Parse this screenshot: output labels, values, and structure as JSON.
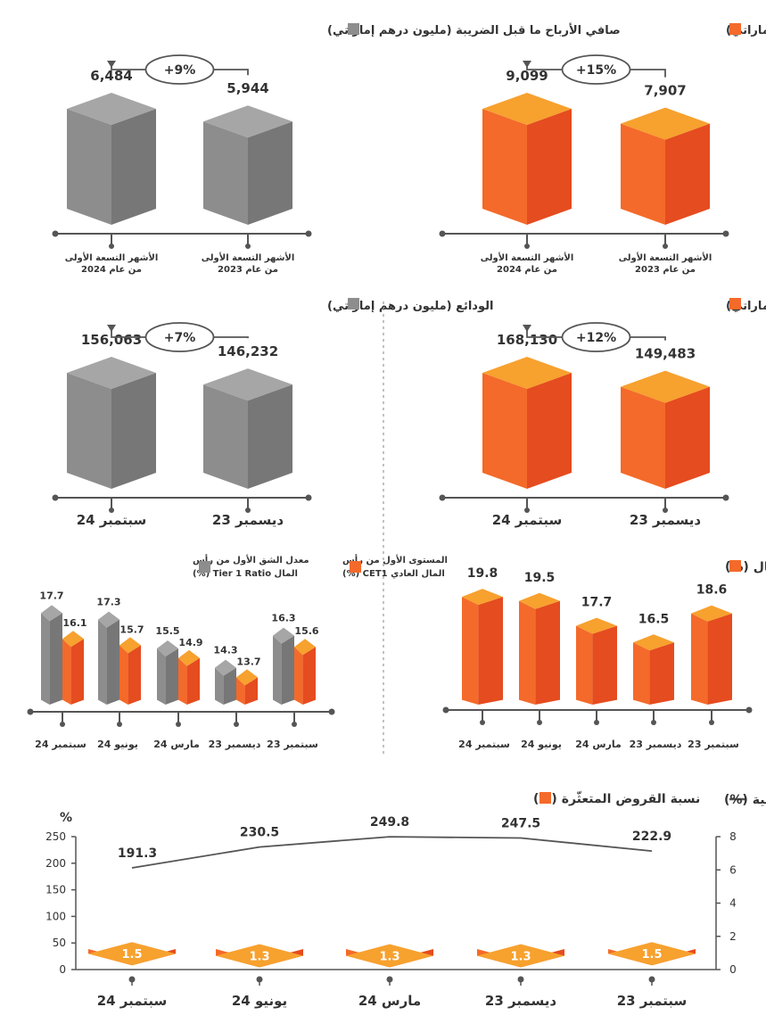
{
  "colors": {
    "orange_top": "#f7a12e",
    "orange_front": "#f46a2a",
    "orange_side": "#e54c1f",
    "gray_top": "#a6a6a6",
    "gray_front": "#8d8d8d",
    "gray_side": "#777777",
    "text": "#333333",
    "axis": "#555555"
  },
  "chart_data": [
    {
      "id": "operating-income",
      "type": "bar",
      "title": "الدخل التشغيلي (مليون درهم إماراتي)",
      "legend_color": "#f46a2a",
      "categories": [
        "الأشهر التسعة الأولى من عام 2024",
        "الأشهر التسعة الأولى من عام 2023"
      ],
      "category_lines": [
        [
          "الأشهر التسعة الأولى",
          "من عام 2024"
        ],
        [
          "الأشهر التسعة الأولى",
          "من عام 2023"
        ]
      ],
      "values": [
        9099,
        7907
      ],
      "labels": [
        "9,099",
        "7,907"
      ],
      "change_label": "+15%"
    },
    {
      "id": "net-profit-before-tax",
      "type": "bar",
      "title": "صافي الأرباح ما قبل الضريبة (مليون درهم إماراتي)",
      "legend_color": "#8d8d8d",
      "categories": [
        "الأشهر التسعة الأولى من عام 2024",
        "الأشهر التسعة الأولى من عام 2023"
      ],
      "category_lines": [
        [
          "الأشهر التسعة الأولى",
          "من عام 2024"
        ],
        [
          "الأشهر التسعة الأولى",
          "من عام 2023"
        ]
      ],
      "values": [
        6484,
        5944
      ],
      "labels": [
        "6,484",
        "5,944"
      ],
      "change_label": "+9%"
    },
    {
      "id": "loans",
      "type": "bar",
      "title": "القروض (مليون درهم إماراتي)",
      "legend_color": "#f46a2a",
      "categories": [
        "سبتمبر 24",
        "ديسمبر 23"
      ],
      "category_lines": [
        [
          "سبتمبر 24"
        ],
        [
          "ديسمبر 23"
        ]
      ],
      "values": [
        168130,
        149483
      ],
      "labels": [
        "168,130",
        "149,483"
      ],
      "change_label": "+12%"
    },
    {
      "id": "deposits",
      "type": "bar",
      "title": "الودائع (مليون درهم إماراتي)",
      "legend_color": "#8d8d8d",
      "categories": [
        "سبتمبر 24",
        "ديسمبر 23"
      ],
      "category_lines": [
        [
          "سبتمبر 24"
        ],
        [
          "ديسمبر 23"
        ]
      ],
      "values": [
        156063,
        146232
      ],
      "labels": [
        "156,063",
        "146,232"
      ],
      "change_label": "+7%"
    },
    {
      "id": "capital-adequacy",
      "type": "bar",
      "title": "معدل كفاية رأس المال (%)",
      "legend_color": "#f46a2a",
      "categories": [
        "سبتمبر 24",
        "يونيو 24",
        "مارس 24",
        "ديسمبر 23",
        "سبتمبر 23"
      ],
      "values": [
        19.8,
        19.5,
        17.7,
        16.5,
        18.6
      ],
      "labels": [
        "19.8",
        "19.5",
        "17.7",
        "16.5",
        "18.6"
      ]
    },
    {
      "id": "tier1-cet1",
      "type": "bar",
      "categories": [
        "سبتمبر 24",
        "يونيو 24",
        "مارس 24",
        "ديسمبر 23",
        "سبتمبر 23"
      ],
      "series": [
        {
          "name": "معدل الشق الأول من رأس المال Tier 1 Ratio (%)",
          "name_lines": [
            "معدل الشق الأول من رأس",
            "المال Tier 1 Ratio (%)"
          ],
          "color": "#8d8d8d",
          "values": [
            17.7,
            17.3,
            15.5,
            14.3,
            16.3
          ],
          "labels": [
            "17.7",
            "17.3",
            "15.5",
            "14.3",
            "16.3"
          ]
        },
        {
          "name": "المستوى الأول من رأس المال العادي CET1 (%)",
          "name_lines": [
            "المستوى الأول من رأس",
            "المال العادي CET1 (%)"
          ],
          "color": "#f46a2a",
          "values": [
            16.1,
            15.7,
            14.9,
            13.7,
            15.6
          ],
          "labels": [
            "16.1",
            "15.7",
            "14.9",
            "13.7",
            "15.6"
          ]
        }
      ]
    },
    {
      "id": "npl-coverage",
      "type": "bar",
      "categories": [
        "سبتمبر 24",
        "يونيو 24",
        "مارس 24",
        "ديسمبر 23",
        "سبتمبر 23"
      ],
      "left_axis": {
        "unit": "%",
        "ticks": [
          "250",
          "200",
          "150",
          "100",
          "50",
          "0"
        ],
        "ylim": [
          0,
          250
        ]
      },
      "right_axis": {
        "ticks": [
          "8",
          "6",
          "4",
          "2",
          "0"
        ],
        "ylim": [
          0,
          8
        ]
      },
      "series": [
        {
          "name": "نسبة القروض المتعثّرة (%)",
          "type": "bar",
          "axis": "right",
          "color": "#f46a2a",
          "values": [
            1.5,
            1.3,
            1.3,
            1.3,
            1.5
          ],
          "labels": [
            "1.5",
            "1.3",
            "1.3",
            "1.3",
            "1.5"
          ]
        },
        {
          "name": "نسبة التغطية (%)",
          "type": "line",
          "axis": "left",
          "color": "#555555",
          "values": [
            191.3,
            230.5,
            249.8,
            247.5,
            222.9
          ],
          "labels": [
            "191.3",
            "230.5",
            "249.8",
            "247.5",
            "222.9"
          ]
        }
      ]
    }
  ]
}
